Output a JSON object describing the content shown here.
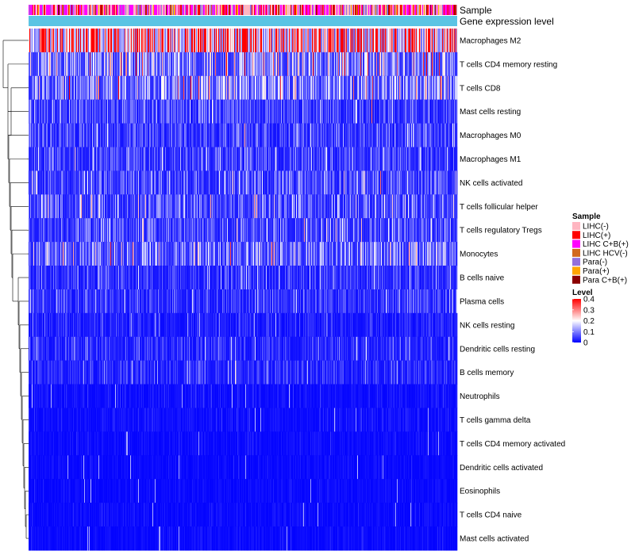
{
  "chart_data": {
    "type": "heatmap",
    "title": "",
    "xlabel": "",
    "ylabel": "",
    "value_range": [
      0,
      0.4
    ],
    "column_count": 540,
    "annotation_bars": [
      {
        "name": "Sample",
        "label": "Sample"
      },
      {
        "name": "Gene expression level",
        "label": "Gene expression level",
        "color": "#5bc4e4"
      }
    ],
    "rows": [
      {
        "label": "Macrophages M2",
        "mean": 0.34
      },
      {
        "label": "T cells CD4 memory resting",
        "mean": 0.13
      },
      {
        "label": "T cells CD8",
        "mean": 0.12
      },
      {
        "label": "Mast cells resting",
        "mean": 0.06
      },
      {
        "label": "Macrophages M0",
        "mean": 0.06
      },
      {
        "label": "Macrophages M1",
        "mean": 0.06
      },
      {
        "label": "NK cells activated",
        "mean": 0.07
      },
      {
        "label": "T cells follicular helper",
        "mean": 0.08
      },
      {
        "label": "T cells regulatory  Tregs",
        "mean": 0.07
      },
      {
        "label": "Monocytes",
        "mean": 0.1
      },
      {
        "label": "B cells naive",
        "mean": 0.05
      },
      {
        "label": "Plasma cells",
        "mean": 0.05
      },
      {
        "label": "NK cells resting",
        "mean": 0.03
      },
      {
        "label": "Dendritic cells resting",
        "mean": 0.04
      },
      {
        "label": "B cells memory",
        "mean": 0.04
      },
      {
        "label": "Neutrophils",
        "mean": 0.015
      },
      {
        "label": "T cells gamma delta",
        "mean": 0.015
      },
      {
        "label": "T cells CD4 memory activated",
        "mean": 0.012
      },
      {
        "label": "Dendritic cells activated",
        "mean": 0.01
      },
      {
        "label": "Eosinophils",
        "mean": 0.01
      },
      {
        "label": "T cells CD4 naive",
        "mean": 0.01
      },
      {
        "label": "Mast cells activated",
        "mean": 0.01
      }
    ],
    "legend_sample": {
      "title": "Sample",
      "items": [
        {
          "label": "LIHC(-)",
          "color": "#ffb6c1"
        },
        {
          "label": "LIHC(+)",
          "color": "#ff0000"
        },
        {
          "label": "LIHC C+B(+)",
          "color": "#ff00ff"
        },
        {
          "label": "LIHC HCV(-)",
          "color": "#d2691e"
        },
        {
          "label": "Para(-)",
          "color": "#9370db"
        },
        {
          "label": "Para(+)",
          "color": "#ffa500"
        },
        {
          "label": "Para C+B(+)",
          "color": "#8b0000"
        }
      ]
    },
    "legend_level": {
      "title": "Level",
      "ticks": [
        {
          "label": "0.4",
          "value": 0.4
        },
        {
          "label": "0.3",
          "value": 0.3
        },
        {
          "label": "0.2",
          "value": 0.2
        },
        {
          "label": "0.1",
          "value": 0.1
        },
        {
          "label": "0",
          "value": 0
        }
      ],
      "colors": [
        "#0000ff",
        "#ffffff",
        "#ff0000"
      ]
    }
  }
}
